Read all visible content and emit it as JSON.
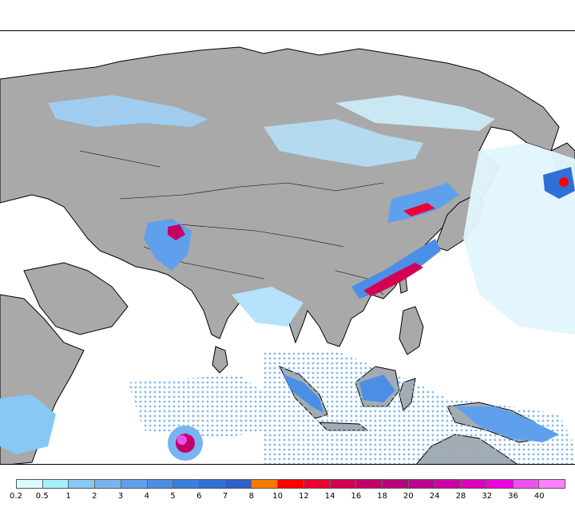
{
  "map": {
    "land_color": "#a9a9a9",
    "ocean_color": "#ffffff",
    "coastline_color": "#000000"
  },
  "legend": {
    "colors": [
      "#d7fbff",
      "#a8eefc",
      "#88c8f5",
      "#78b4f0",
      "#5fa0ec",
      "#4b8ee6",
      "#3a7ee0",
      "#2f6fd8",
      "#2e60c8",
      "#f57a00",
      "#ff0000",
      "#ee0033",
      "#d40052",
      "#c40066",
      "#b8007a",
      "#c00090",
      "#d000a8",
      "#e000c0",
      "#f000e0",
      "#f050f0",
      "#ff80ff"
    ],
    "labels": [
      "0.2",
      "0.5",
      "1",
      "2",
      "3",
      "4",
      "5",
      "6",
      "7",
      "8",
      "10",
      "12",
      "14",
      "16",
      "18",
      "20",
      "24",
      "28",
      "32",
      "36",
      "40"
    ]
  }
}
